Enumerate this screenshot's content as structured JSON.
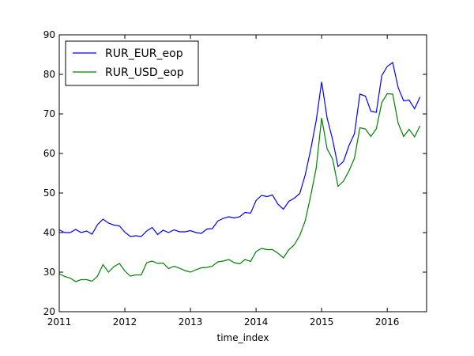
{
  "chart_data": {
    "type": "line",
    "xlabel": "time_index",
    "ylabel": "",
    "xlim": [
      2011.0,
      2016.6
    ],
    "ylim": [
      20,
      90
    ],
    "xticks": [
      2011,
      2012,
      2013,
      2014,
      2015,
      2016
    ],
    "xtick_labels": [
      "2011",
      "2012",
      "2013",
      "2014",
      "2015",
      "2016"
    ],
    "yticks": [
      20,
      30,
      40,
      50,
      60,
      70,
      80,
      90
    ],
    "ytick_labels": [
      "20",
      "30",
      "40",
      "50",
      "60",
      "70",
      "80",
      "90"
    ],
    "legend_position": "top-left",
    "grid": false,
    "x": [
      2011.0,
      2011.083,
      2011.167,
      2011.25,
      2011.333,
      2011.417,
      2011.5,
      2011.583,
      2011.667,
      2011.75,
      2011.833,
      2011.917,
      2012.0,
      2012.083,
      2012.167,
      2012.25,
      2012.333,
      2012.417,
      2012.5,
      2012.583,
      2012.667,
      2012.75,
      2012.833,
      2012.917,
      2013.0,
      2013.083,
      2013.167,
      2013.25,
      2013.333,
      2013.417,
      2013.5,
      2013.583,
      2013.667,
      2013.75,
      2013.833,
      2013.917,
      2014.0,
      2014.083,
      2014.167,
      2014.25,
      2014.333,
      2014.417,
      2014.5,
      2014.583,
      2014.667,
      2014.75,
      2014.833,
      2014.917,
      2015.0,
      2015.083,
      2015.167,
      2015.25,
      2015.333,
      2015.417,
      2015.5,
      2015.583,
      2015.667,
      2015.75,
      2015.833,
      2015.917,
      2016.0,
      2016.083,
      2016.167,
      2016.25,
      2016.333,
      2016.417,
      2016.5
    ],
    "series": [
      {
        "name": "RUR_EUR_eop",
        "color": "#0000ff",
        "values": [
          40.7,
          40.0,
          40.0,
          40.8,
          40.0,
          40.4,
          39.6,
          42.0,
          43.4,
          42.4,
          41.9,
          41.7,
          40.1,
          39.0,
          39.2,
          39.0,
          40.4,
          41.3,
          39.5,
          40.6,
          40.0,
          40.7,
          40.2,
          40.2,
          40.5,
          40.0,
          39.8,
          40.9,
          41.0,
          42.9,
          43.6,
          44.0,
          43.7,
          44.0,
          45.1,
          44.9,
          48.1,
          49.4,
          49.1,
          49.5,
          47.2,
          45.9,
          47.9,
          48.7,
          49.9,
          54.6,
          61.0,
          68.3,
          78.1,
          69.0,
          63.5,
          56.7,
          58.0,
          62.0,
          65.0,
          75.0,
          74.5,
          70.7,
          70.4,
          79.7,
          82.0,
          83.0,
          76.6,
          73.3,
          73.5,
          71.3,
          74.3
        ]
      },
      {
        "name": "RUR_USD_eop",
        "color": "#008000",
        "values": [
          29.6,
          28.9,
          28.5,
          27.6,
          28.1,
          28.1,
          27.7,
          29.0,
          31.9,
          30.0,
          31.4,
          32.2,
          30.3,
          29.0,
          29.3,
          29.3,
          32.4,
          32.8,
          32.2,
          32.3,
          30.9,
          31.5,
          31.0,
          30.4,
          30.0,
          30.6,
          31.1,
          31.2,
          31.5,
          32.6,
          32.8,
          33.2,
          32.4,
          32.1,
          33.2,
          32.7,
          35.2,
          36.0,
          35.7,
          35.7,
          34.8,
          33.6,
          35.7,
          36.9,
          39.3,
          43.0,
          49.3,
          56.3,
          69.0,
          61.2,
          58.6,
          51.7,
          53.0,
          55.6,
          58.8,
          66.5,
          66.2,
          64.3,
          66.2,
          72.9,
          75.1,
          75.0,
          67.6,
          64.3,
          66.1,
          64.2,
          67.0
        ]
      }
    ]
  }
}
